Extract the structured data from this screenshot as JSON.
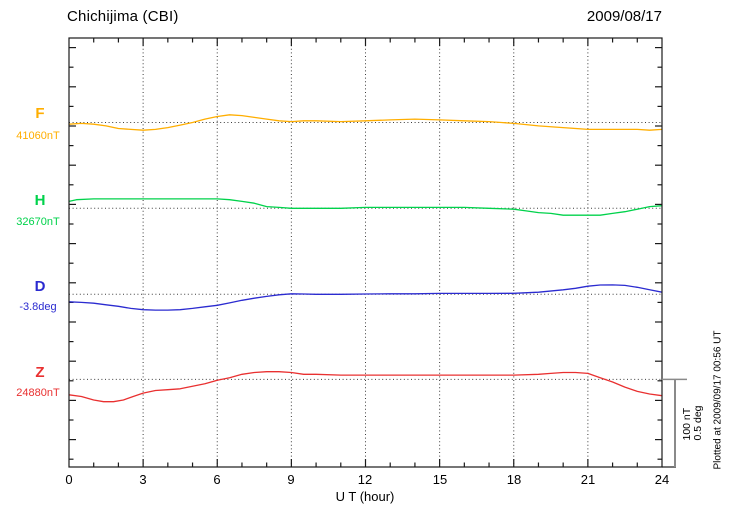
{
  "header": {
    "title": "Chichijima (CBI)",
    "date": "2009/08/17"
  },
  "xaxis": {
    "label": "U T (hour)",
    "ticks": [
      "0",
      "3",
      "6",
      "9",
      "12",
      "15",
      "18",
      "21",
      "24"
    ]
  },
  "scalebar": {
    "line1": "100 nT",
    "line2": "0.5 deg"
  },
  "footer_note": "Plotted at 2009/09/17 00:56 UT",
  "chart_data": {
    "type": "line",
    "title": "Chichijima (CBI) magnetogram 2009/08/17",
    "xlabel": "U T (hour)",
    "x_range": [
      0,
      24
    ],
    "x_tick_step": 3,
    "grid": "dotted vertical lines every 3 h; dotted horizontal baseline per trace",
    "legend_position": "left margin trace labels",
    "scale_bar": {
      "amplitude_nT": 100,
      "amplitude_deg": 0.5
    },
    "series": [
      {
        "name": "F",
        "label": "F",
        "value_label": "41060nT",
        "base_value": 41060,
        "unit": "nT",
        "color": "#FFAE00",
        "points": [
          [
            0,
            41058
          ],
          [
            0.5,
            41059
          ],
          [
            1,
            41058
          ],
          [
            1.5,
            41056
          ],
          [
            2,
            41053
          ],
          [
            2.5,
            41052
          ],
          [
            3,
            41051
          ],
          [
            3.5,
            41052
          ],
          [
            4,
            41054
          ],
          [
            4.5,
            41057
          ],
          [
            5,
            41060
          ],
          [
            5.5,
            41064
          ],
          [
            6,
            41067
          ],
          [
            6.5,
            41069
          ],
          [
            7,
            41068
          ],
          [
            7.5,
            41066
          ],
          [
            8,
            41064
          ],
          [
            8.5,
            41062
          ],
          [
            9,
            41061
          ],
          [
            9.5,
            41062
          ],
          [
            10,
            41062
          ],
          [
            11,
            41061
          ],
          [
            12,
            41062
          ],
          [
            13,
            41063
          ],
          [
            14,
            41064
          ],
          [
            15,
            41063
          ],
          [
            16,
            41062
          ],
          [
            17,
            41061
          ],
          [
            17.5,
            41060
          ],
          [
            18,
            41059
          ],
          [
            19,
            41056
          ],
          [
            20,
            41054
          ],
          [
            21,
            41052
          ],
          [
            22,
            41052
          ],
          [
            23,
            41052
          ],
          [
            23.5,
            41051
          ],
          [
            24,
            41052
          ]
        ]
      },
      {
        "name": "H",
        "label": "H",
        "value_label": "32670nT",
        "base_value": 32670,
        "unit": "nT",
        "color": "#00D24B",
        "points": [
          [
            0,
            32678
          ],
          [
            0.3,
            32680
          ],
          [
            1,
            32681
          ],
          [
            2,
            32681
          ],
          [
            3,
            32681
          ],
          [
            4,
            32681
          ],
          [
            5,
            32681
          ],
          [
            6,
            32681
          ],
          [
            6.5,
            32680
          ],
          [
            7,
            32678
          ],
          [
            7.5,
            32676
          ],
          [
            8,
            32672
          ],
          [
            8.5,
            32671
          ],
          [
            9,
            32670
          ],
          [
            10,
            32670
          ],
          [
            11,
            32670
          ],
          [
            12,
            32671
          ],
          [
            13,
            32671
          ],
          [
            14,
            32671
          ],
          [
            15,
            32671
          ],
          [
            16,
            32671
          ],
          [
            17,
            32670
          ],
          [
            18,
            32669
          ],
          [
            18.5,
            32667
          ],
          [
            19,
            32665
          ],
          [
            19.5,
            32664
          ],
          [
            20,
            32662
          ],
          [
            20.5,
            32662
          ],
          [
            21,
            32662
          ],
          [
            21.5,
            32662
          ],
          [
            22,
            32664
          ],
          [
            22.5,
            32666
          ],
          [
            23,
            32669
          ],
          [
            23.5,
            32672
          ],
          [
            24,
            32673
          ]
        ]
      },
      {
        "name": "D",
        "label": "D",
        "value_label": "-3.8deg",
        "base_value": -3.8,
        "unit": "deg",
        "color": "#2B2BD0",
        "points": [
          [
            0,
            -3.844
          ],
          [
            0.5,
            -3.847
          ],
          [
            1,
            -3.852
          ],
          [
            1.5,
            -3.861
          ],
          [
            2,
            -3.87
          ],
          [
            2.5,
            -3.882
          ],
          [
            3,
            -3.89
          ],
          [
            3.5,
            -3.892
          ],
          [
            4,
            -3.892
          ],
          [
            4.5,
            -3.89
          ],
          [
            5,
            -3.882
          ],
          [
            5.5,
            -3.873
          ],
          [
            6,
            -3.864
          ],
          [
            6.5,
            -3.85
          ],
          [
            7,
            -3.835
          ],
          [
            7.5,
            -3.823
          ],
          [
            8,
            -3.812
          ],
          [
            8.5,
            -3.803
          ],
          [
            9,
            -3.797
          ],
          [
            9.5,
            -3.798
          ],
          [
            10,
            -3.8
          ],
          [
            11,
            -3.8
          ],
          [
            12,
            -3.798
          ],
          [
            13,
            -3.797
          ],
          [
            14,
            -3.797
          ],
          [
            15,
            -3.795
          ],
          [
            16,
            -3.795
          ],
          [
            17,
            -3.795
          ],
          [
            18,
            -3.794
          ],
          [
            19,
            -3.788
          ],
          [
            20,
            -3.774
          ],
          [
            20.5,
            -3.765
          ],
          [
            21,
            -3.753
          ],
          [
            21.5,
            -3.746
          ],
          [
            22,
            -3.745
          ],
          [
            22.5,
            -3.748
          ],
          [
            23,
            -3.759
          ],
          [
            23.5,
            -3.774
          ],
          [
            24,
            -3.788
          ]
        ]
      },
      {
        "name": "Z",
        "label": "Z",
        "value_label": "24880nT",
        "base_value": 24880,
        "unit": "nT",
        "color": "#E93030",
        "points": [
          [
            0,
            24862
          ],
          [
            0.5,
            24860
          ],
          [
            1,
            24856
          ],
          [
            1.4,
            24854
          ],
          [
            1.8,
            24854
          ],
          [
            2.2,
            24856
          ],
          [
            2.6,
            24860
          ],
          [
            3,
            24864
          ],
          [
            3.5,
            24867
          ],
          [
            4,
            24868
          ],
          [
            4.5,
            24869
          ],
          [
            5,
            24872
          ],
          [
            5.5,
            24875
          ],
          [
            6,
            24879
          ],
          [
            6.5,
            24882
          ],
          [
            7,
            24886
          ],
          [
            7.5,
            24888
          ],
          [
            8,
            24889
          ],
          [
            8.5,
            24889
          ],
          [
            9,
            24888
          ],
          [
            9.5,
            24886
          ],
          [
            10,
            24886
          ],
          [
            11,
            24885
          ],
          [
            12,
            24885
          ],
          [
            13,
            24885
          ],
          [
            14,
            24885
          ],
          [
            15,
            24885
          ],
          [
            16,
            24885
          ],
          [
            17,
            24885
          ],
          [
            18,
            24885
          ],
          [
            19,
            24886
          ],
          [
            19.5,
            24887
          ],
          [
            20,
            24888
          ],
          [
            20.5,
            24888
          ],
          [
            21,
            24887
          ],
          [
            21.5,
            24882
          ],
          [
            22,
            24877
          ],
          [
            22.5,
            24871
          ],
          [
            23,
            24866
          ],
          [
            23.5,
            24863
          ],
          [
            24,
            24861
          ]
        ]
      }
    ]
  }
}
